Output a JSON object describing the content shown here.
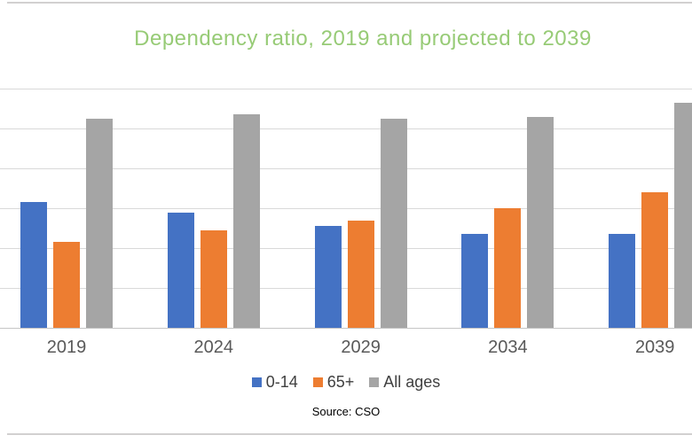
{
  "window": {
    "background": "#FFFFFF",
    "border_color": "#D2D0D0"
  },
  "source": {
    "text": "Source: CSO"
  },
  "chart_data": {
    "type": "bar",
    "title": "Dependency ratio, 2019 and projected to 2039",
    "title_color": "#97CB76",
    "categories": [
      "2019",
      "2024",
      "2029",
      "2034",
      "2039"
    ],
    "series": [
      {
        "name": "0-14",
        "color": "#4472C4",
        "values": [
          31.5,
          29.0,
          25.5,
          23.5,
          23.5
        ]
      },
      {
        "name": "65+",
        "color": "#ED7D31",
        "values": [
          21.5,
          24.5,
          27.0,
          30.0,
          34.0
        ]
      },
      {
        "name": "All ages",
        "color": "#A5A5A5",
        "values": [
          52.5,
          53.5,
          52.5,
          53.0,
          56.5
        ]
      }
    ],
    "xlabel": "",
    "ylabel": "",
    "ylim": [
      0,
      60
    ],
    "gridline_step": 10,
    "grid": true,
    "gridline_color": "#D9D9D9",
    "axis_line_color": "#C6C6C6",
    "category_label_color": "#595959",
    "legend_text_color": "#404040",
    "legend_position": "bottom",
    "y_axis_labels_visible": false
  }
}
